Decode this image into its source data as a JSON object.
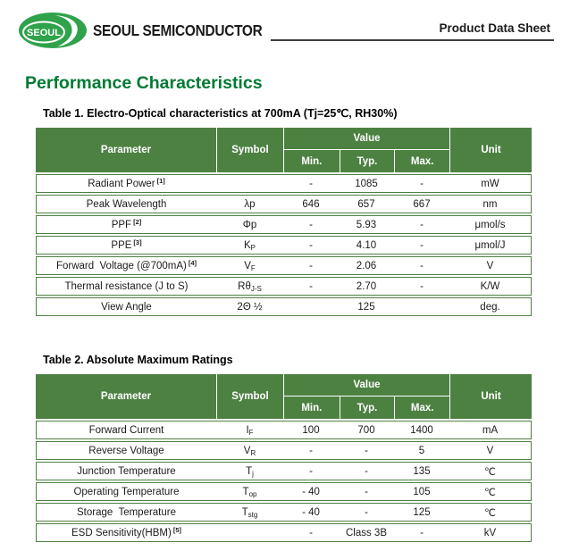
{
  "header": {
    "logo_text": "SEOUL",
    "company_name": "SEOUL SEMICONDUCTOR",
    "doc_type": "Product Data Sheet"
  },
  "page_title": "Performance Characteristics",
  "table_header": {
    "parameter": "Parameter",
    "symbol": "Symbol",
    "value": "Value",
    "min": "Min.",
    "typ": "Typ.",
    "max": "Max.",
    "unit": "Unit"
  },
  "tables": [
    {
      "title": "Table 1. Electro-Optical characteristics at 700mA (Tj=25℃, RH30%)",
      "rows": [
        {
          "parameter": "Radiant Power",
          "note": "[1]",
          "symbol": "",
          "sub": "",
          "min": "-",
          "typ": "1085",
          "max": "-",
          "unit": "mW"
        },
        {
          "parameter": "Peak Wavelength",
          "note": "",
          "symbol": "λp",
          "sub": "",
          "min": "646",
          "typ": "657",
          "max": "667",
          "unit": "nm"
        },
        {
          "parameter": "PPF",
          "note": "[2]",
          "symbol": "Φp",
          "sub": "",
          "min": "-",
          "typ": "5.93",
          "max": "-",
          "unit": "μmol/s"
        },
        {
          "parameter": "PPE",
          "note": "[3]",
          "symbol": "K",
          "sub": "P",
          "min": "-",
          "typ": "4.10",
          "max": "-",
          "unit": "μmol/J"
        },
        {
          "parameter": "Forward  Voltage (@700mA)",
          "note": "[4]",
          "symbol": "V",
          "sub": "F",
          "min": "-",
          "typ": "2.06",
          "max": "-",
          "unit": "V"
        },
        {
          "parameter": "Thermal resistance (J to S)",
          "note": "",
          "symbol": "Rθ",
          "sub": "J-S",
          "min": "-",
          "typ": "2.70",
          "max": "-",
          "unit": "K/W"
        },
        {
          "parameter": "View Angle",
          "note": "",
          "symbol": "2Θ ½",
          "sub": "",
          "min": "",
          "typ": "125",
          "max": "",
          "unit": "deg."
        }
      ]
    },
    {
      "title": "Table 2. Absolute Maximum Ratings",
      "rows": [
        {
          "parameter": "Forward Current",
          "note": "",
          "symbol": "I",
          "sub": "F",
          "min": "100",
          "typ": "700",
          "max": "1400",
          "unit": "mA"
        },
        {
          "parameter": "Reverse Voltage",
          "note": "",
          "symbol": "V",
          "sub": "R",
          "min": "-",
          "typ": "-",
          "max": "5",
          "unit": "V"
        },
        {
          "parameter": "Junction Temperature",
          "note": "",
          "symbol": "T",
          "sub": "j",
          "min": "-",
          "typ": "-",
          "max": "135",
          "unit": "℃"
        },
        {
          "parameter": "Operating Temperature",
          "note": "",
          "symbol": "T",
          "sub": "op",
          "min": "- 40",
          "typ": "-",
          "max": "105",
          "unit": "℃"
        },
        {
          "parameter": "Storage  Temperature",
          "note": "",
          "symbol": "T",
          "sub": "stg",
          "min": "- 40",
          "typ": "-",
          "max": "125",
          "unit": "℃"
        },
        {
          "parameter": "ESD Sensitivity(HBM)",
          "note": "[5]",
          "symbol": "",
          "sub": "",
          "min": "-",
          "typ": "Class 3B",
          "max": "-",
          "unit": "kV"
        }
      ]
    }
  ],
  "colors": {
    "table_header_green": "#4d8142",
    "row_border_green": "#4e8044",
    "title_green": "#007a33",
    "logo_green": "#2fa24b",
    "header_rule": "#3c3c3c",
    "text": "#1b1b1b"
  }
}
